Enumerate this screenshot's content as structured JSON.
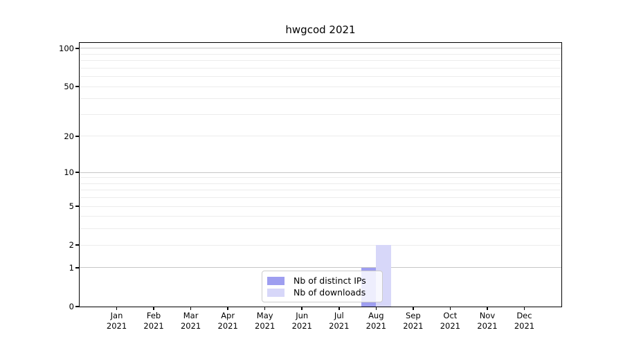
{
  "figure": {
    "title": "hwgcod 2021",
    "background_color": "#ffffff",
    "axis_color": "#000000"
  },
  "chart_data": {
    "type": "bar",
    "title": "hwgcod 2021",
    "xlabel": "",
    "ylabel": "",
    "categories": [
      {
        "month": "Jan",
        "year": "2021"
      },
      {
        "month": "Feb",
        "year": "2021"
      },
      {
        "month": "Mar",
        "year": "2021"
      },
      {
        "month": "Apr",
        "year": "2021"
      },
      {
        "month": "May",
        "year": "2021"
      },
      {
        "month": "Jun",
        "year": "2021"
      },
      {
        "month": "Jul",
        "year": "2021"
      },
      {
        "month": "Aug",
        "year": "2021"
      },
      {
        "month": "Sep",
        "year": "2021"
      },
      {
        "month": "Oct",
        "year": "2021"
      },
      {
        "month": "Nov",
        "year": "2021"
      },
      {
        "month": "Dec",
        "year": "2021"
      }
    ],
    "series": [
      {
        "name": "Nb of distinct IPs",
        "color": "#9e9ef0",
        "values": [
          0,
          0,
          0,
          0,
          0,
          0,
          0,
          1,
          0,
          0,
          0,
          0
        ]
      },
      {
        "name": "Nb of downloads",
        "color": "#d7d7f9",
        "values": [
          0,
          0,
          0,
          0,
          0,
          0,
          0,
          2,
          0,
          0,
          0,
          0
        ]
      }
    ],
    "yscale": "log1p",
    "ylim": [
      0,
      110
    ],
    "ytick_values": [
      0,
      1,
      2,
      5,
      10,
      20,
      50,
      100
    ],
    "ytick_labels": [
      "0",
      "1",
      "2",
      "5",
      "10",
      "20",
      "50",
      "100"
    ],
    "grid": true,
    "grid_major_values": [
      1,
      10,
      100
    ],
    "grid_minor_values": [
      2,
      3,
      4,
      5,
      6,
      7,
      8,
      9,
      20,
      30,
      40,
      50,
      60,
      70,
      80,
      90
    ],
    "grid_major_color": "#c6c6c6",
    "grid_minor_color": "#ececec",
    "legend": {
      "position": "lower center",
      "entries": [
        "Nb of distinct IPs",
        "Nb of downloads"
      ]
    }
  }
}
